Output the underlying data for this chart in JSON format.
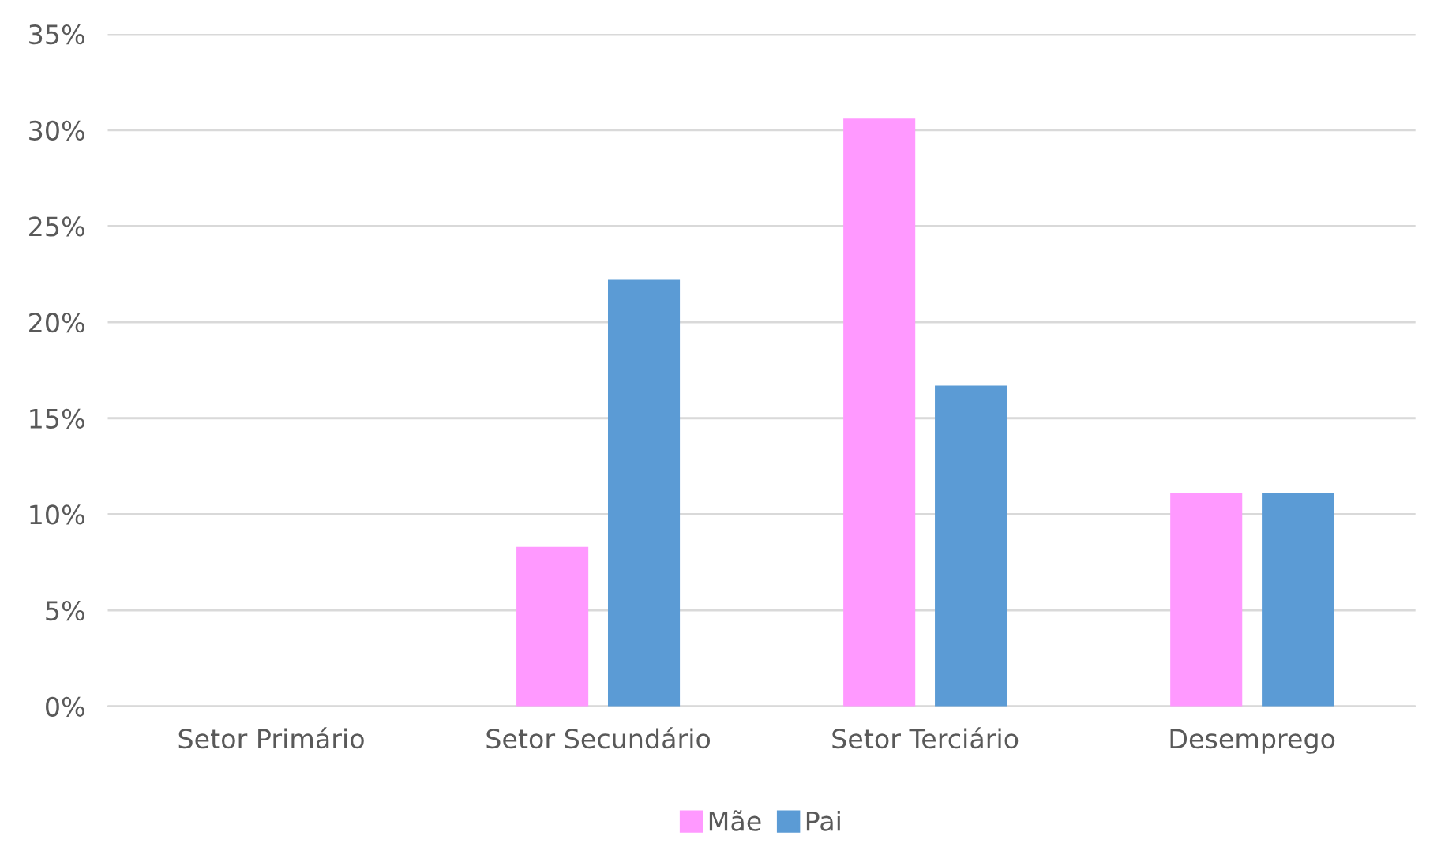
{
  "chart_data": {
    "type": "bar",
    "categories": [
      "Setor Primário",
      "Setor Secundário",
      "Setor Terciário",
      "Desemprego"
    ],
    "series": [
      {
        "name": "Mãe",
        "color": "#ff99ff",
        "values": [
          0,
          8.3,
          30.6,
          11.1
        ]
      },
      {
        "name": "Pai",
        "color": "#5b9bd5",
        "values": [
          0,
          22.2,
          16.7,
          11.1
        ]
      }
    ],
    "ylim": [
      0,
      35
    ],
    "yticks": [
      {
        "value": 0,
        "label": "0%"
      },
      {
        "value": 5,
        "label": "5%"
      },
      {
        "value": 10,
        "label": "10%"
      },
      {
        "value": 15,
        "label": "15%"
      },
      {
        "value": 20,
        "label": "20%"
      },
      {
        "value": 25,
        "label": "25%"
      },
      {
        "value": 30,
        "label": "30%"
      },
      {
        "value": 35,
        "label": "35%"
      }
    ],
    "grid": "y",
    "legend": "bottom"
  }
}
